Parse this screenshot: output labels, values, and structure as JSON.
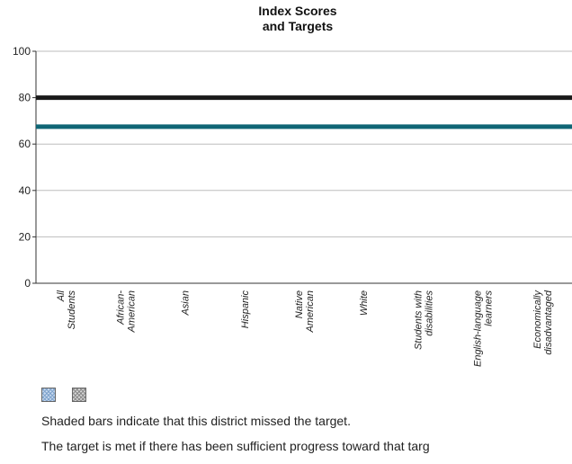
{
  "chart_data": {
    "type": "bar",
    "title_lines": [
      "Index Scores",
      "and Targets"
    ],
    "categories": [
      [
        "All",
        "Students"
      ],
      [
        "African-",
        "American"
      ],
      [
        "Asian"
      ],
      [
        "Hispanic"
      ],
      [
        "Native",
        "American"
      ],
      [
        "White"
      ],
      [
        "Students with",
        "disabilities"
      ],
      [
        "English-language",
        "learners"
      ],
      [
        "Economically",
        "disadvantaged"
      ]
    ],
    "ylim": [
      0,
      100
    ],
    "yticks": [
      0,
      20,
      40,
      60,
      80,
      100
    ],
    "reference_lines": [
      {
        "value": 80,
        "color": "#1a1a1a"
      },
      {
        "value": 67.5,
        "color": "#0f6675"
      }
    ],
    "series": [],
    "grid": true,
    "legend_swatch_colors": [
      "#c7d9ee",
      "#d6d6d6"
    ]
  },
  "notes": {
    "line1": "Shaded bars indicate that this district missed the target.",
    "line2": "The target is met if there has been sufficient progress toward that targ"
  }
}
